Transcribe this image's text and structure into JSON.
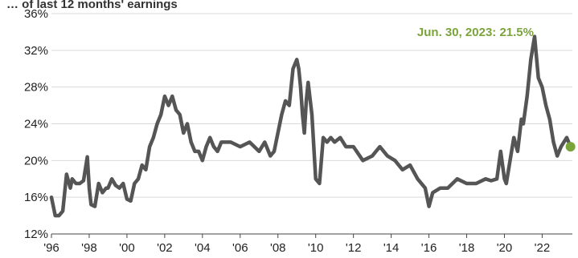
{
  "chart_data": {
    "type": "line",
    "title": "… of last 12 months' earnings",
    "xlabel": "",
    "ylabel": "",
    "xlim": [
      1996.0,
      2023.6
    ],
    "ylim": [
      12,
      36
    ],
    "x_ticks": [
      {
        "value": 1996,
        "label": "'96"
      },
      {
        "value": 1998,
        "label": "'98"
      },
      {
        "value": 2000,
        "label": "'00"
      },
      {
        "value": 2002,
        "label": "'02"
      },
      {
        "value": 2004,
        "label": "'04"
      },
      {
        "value": 2006,
        "label": "'06"
      },
      {
        "value": 2008,
        "label": "'08"
      },
      {
        "value": 2010,
        "label": "'10"
      },
      {
        "value": 2012,
        "label": "'12"
      },
      {
        "value": 2014,
        "label": "'14"
      },
      {
        "value": 2016,
        "label": "'16"
      },
      {
        "value": 2018,
        "label": "'18"
      },
      {
        "value": 2020,
        "label": "'20"
      },
      {
        "value": 2022,
        "label": "'22"
      }
    ],
    "y_ticks": [
      {
        "value": 12,
        "label": "12%"
      },
      {
        "value": 16,
        "label": "16%"
      },
      {
        "value": 20,
        "label": "20%"
      },
      {
        "value": 24,
        "label": "24%"
      },
      {
        "value": 28,
        "label": "28%"
      },
      {
        "value": 32,
        "label": "32%"
      },
      {
        "value": 36,
        "label": "36%"
      }
    ],
    "grid": {
      "horizontal": true,
      "vertical": false
    },
    "legend": "none",
    "series": [
      {
        "color": "#555555",
        "x": [
          1996.0,
          1996.2,
          1996.4,
          1996.6,
          1996.8,
          1997.0,
          1997.1,
          1997.3,
          1997.5,
          1997.7,
          1997.9,
          1998.0,
          1998.1,
          1998.3,
          1998.5,
          1998.7,
          1998.9,
          1999.0,
          1999.2,
          1999.4,
          1999.6,
          1999.8,
          2000.0,
          2000.2,
          2000.4,
          2000.6,
          2000.8,
          2001.0,
          2001.2,
          2001.4,
          2001.6,
          2001.8,
          2002.0,
          2002.2,
          2002.4,
          2002.6,
          2002.8,
          2003.0,
          2003.2,
          2003.4,
          2003.6,
          2003.8,
          2004.0,
          2004.2,
          2004.4,
          2004.6,
          2004.8,
          2005.0,
          2005.5,
          2006.0,
          2006.5,
          2007.0,
          2007.3,
          2007.6,
          2007.8,
          2008.0,
          2008.2,
          2008.4,
          2008.6,
          2008.8,
          2009.0,
          2009.1,
          2009.2,
          2009.3,
          2009.4,
          2009.5,
          2009.6,
          2009.8,
          2010.0,
          2010.2,
          2010.4,
          2010.6,
          2010.8,
          2011.0,
          2011.3,
          2011.6,
          2012.0,
          2012.5,
          2013.0,
          2013.4,
          2013.8,
          2014.2,
          2014.6,
          2015.0,
          2015.4,
          2015.8,
          2016.0,
          2016.2,
          2016.6,
          2017.0,
          2017.5,
          2018.0,
          2018.5,
          2019.0,
          2019.3,
          2019.6,
          2019.8,
          2020.0,
          2020.1,
          2020.3,
          2020.5,
          2020.7,
          2020.9,
          2021.0,
          2021.2,
          2021.4,
          2021.6,
          2021.8,
          2022.0,
          2022.2,
          2022.4,
          2022.6,
          2022.8,
          2023.0,
          2023.3,
          2023.5
        ],
        "values": [
          16.0,
          14.0,
          14.0,
          14.5,
          18.5,
          17.0,
          18.0,
          17.5,
          17.5,
          17.8,
          20.4,
          17.0,
          15.2,
          15.0,
          17.5,
          16.5,
          17.0,
          17.0,
          18.0,
          17.3,
          17.0,
          17.5,
          15.8,
          15.6,
          17.5,
          18.0,
          19.5,
          19.0,
          21.5,
          22.5,
          24.0,
          25.0,
          27.0,
          26.0,
          27.0,
          25.5,
          25.0,
          23.0,
          24.0,
          22.0,
          21.0,
          21.0,
          20.0,
          21.5,
          22.5,
          21.5,
          21.0,
          22.0,
          22.0,
          21.5,
          22.0,
          21.0,
          22.0,
          20.5,
          21.0,
          23.0,
          25.0,
          26.5,
          26.0,
          30.0,
          31.0,
          30.0,
          28.0,
          25.0,
          23.0,
          26.5,
          28.5,
          25.0,
          18.0,
          17.5,
          22.5,
          22.0,
          22.5,
          22.0,
          22.5,
          21.5,
          21.5,
          20.0,
          20.5,
          21.5,
          20.5,
          20.0,
          19.0,
          19.5,
          18.0,
          17.0,
          15.0,
          16.5,
          17.0,
          17.0,
          18.0,
          17.5,
          17.5,
          18.0,
          17.8,
          18.0,
          21.0,
          18.0,
          17.5,
          20.0,
          22.5,
          21.0,
          24.5,
          24.0,
          27.0,
          31.0,
          33.5,
          29.0,
          28.0,
          26.0,
          24.5,
          22.0,
          20.5,
          21.5,
          22.5,
          21.5
        ]
      }
    ],
    "highlight_point": {
      "x": 2023.5,
      "value": 21.5,
      "color": "#7aa43a"
    },
    "annotation": {
      "text": "Jun. 30, 2023: 21.5%",
      "color": "#7aa43a"
    }
  }
}
